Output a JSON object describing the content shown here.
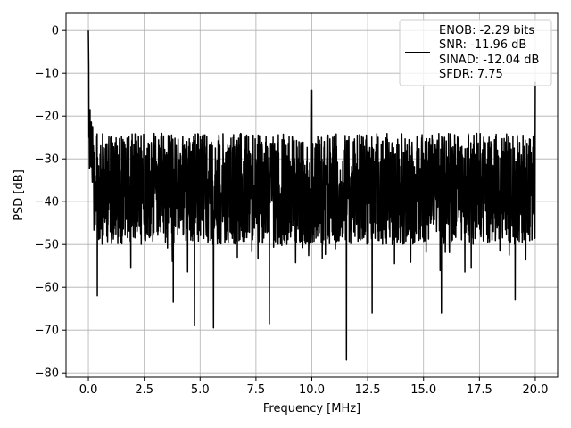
{
  "chart_data": {
    "type": "line",
    "title": "",
    "xlabel": "Frequency [MHz]",
    "ylabel": "PSD [dB]",
    "xlim": [
      -1.0,
      21.0
    ],
    "ylim": [
      -81.0,
      4.0
    ],
    "xticks": [
      0.0,
      2.5,
      5.0,
      7.5,
      10.0,
      12.5,
      15.0,
      17.5,
      20.0
    ],
    "xtick_labels": [
      "0.0",
      "2.5",
      "5.0",
      "7.5",
      "10.0",
      "12.5",
      "15.0",
      "17.5",
      "20.0"
    ],
    "yticks": [
      0,
      -10,
      -20,
      -30,
      -40,
      -50,
      -60,
      -70,
      -80
    ],
    "ytick_labels": [
      "0",
      "−10",
      "−20",
      "−30",
      "−40",
      "−50",
      "−60",
      "−70",
      "−80"
    ],
    "grid": true,
    "legend_placement": "top-right",
    "legend_lines": [
      "ENOB: -2.29 bits",
      "SNR: -11.96 dB",
      "SINAD: -12.04 dB",
      "SFDR: 7.75"
    ],
    "series": [
      {
        "color": "#000000",
        "description_points": {
          "x": [
            0.0,
            0.02,
            0.05,
            0.1,
            0.2,
            0.3,
            0.5,
            1.0,
            9.99,
            10.0,
            10.01,
            19.95,
            20.0
          ],
          "y": [
            0.0,
            -13.0,
            -18.0,
            -22.0,
            -24.0,
            -25.0,
            -26.0,
            -27.0,
            -28.0,
            -14.0,
            -28.0,
            -28.0,
            -12.0
          ]
        },
        "noise_floor_upper": -27.0,
        "noise_floor_lower": -50.0,
        "deep_nulls": [
          {
            "x": 0.4,
            "y": -62.0
          },
          {
            "x": 3.8,
            "y": -63.5
          },
          {
            "x": 4.75,
            "y": -69.0
          },
          {
            "x": 5.6,
            "y": -69.5
          },
          {
            "x": 8.1,
            "y": -68.5
          },
          {
            "x": 11.55,
            "y": -77.0
          },
          {
            "x": 12.7,
            "y": -66.0
          },
          {
            "x": 15.8,
            "y": -66.0
          },
          {
            "x": 19.1,
            "y": -63.0
          }
        ]
      }
    ]
  }
}
